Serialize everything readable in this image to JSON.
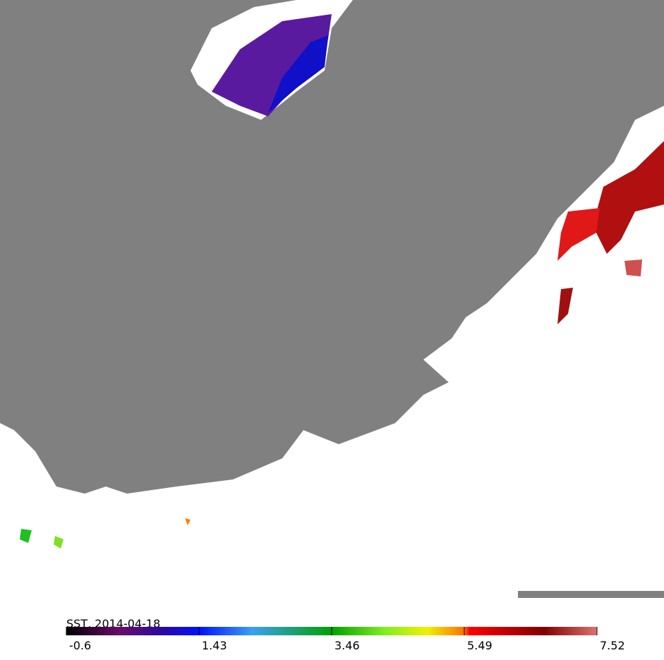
{
  "map": {
    "title": "SST, 2014-04-18",
    "colorbar": {
      "lim": [
        -0.6,
        7.52
      ],
      "ticks": [
        -0.6,
        1.43,
        3.46,
        5.49,
        7.52
      ]
    }
  }
}
